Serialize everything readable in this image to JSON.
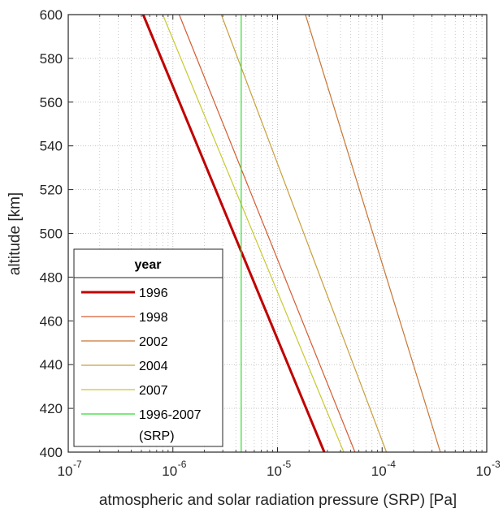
{
  "chart_data": {
    "type": "line",
    "xlabel": "atmospheric and solar radiation pressure (SRP) [Pa]",
    "ylabel": "altitude [km]",
    "xscale": "log",
    "xlim": [
      1e-07,
      0.001
    ],
    "ylim": [
      400,
      600
    ],
    "grid": true,
    "minor_grid": true,
    "y_ticks": [
      "400",
      "420",
      "440",
      "460",
      "480",
      "500",
      "520",
      "540",
      "560",
      "580",
      "600"
    ],
    "x_ticks": [
      {
        "base": "10",
        "exp": "-7"
      },
      {
        "base": "10",
        "exp": "-6"
      },
      {
        "base": "10",
        "exp": "-5"
      },
      {
        "base": "10",
        "exp": "-4"
      },
      {
        "base": "10",
        "exp": "-3"
      }
    ],
    "legend": {
      "title": "year",
      "placement": "bottom-left"
    },
    "series": [
      {
        "name": "1996",
        "color": "#c00000",
        "width": 3,
        "x": [
          5.2e-07,
          2.8e-05
        ],
        "y": [
          600,
          400
        ]
      },
      {
        "name": "1998",
        "color": "#d35c32",
        "width": 1.2,
        "x": [
          1.15e-06,
          5.5e-05
        ],
        "y": [
          600,
          400
        ]
      },
      {
        "name": "2002",
        "color": "#c87533",
        "width": 1.2,
        "x": [
          1.85e-05,
          0.00036
        ],
        "y": [
          600,
          400
        ]
      },
      {
        "name": "2004",
        "color": "#c8a03c",
        "width": 1.2,
        "x": [
          2.9e-06,
          0.00011
        ],
        "y": [
          600,
          400
        ]
      },
      {
        "name": "2007",
        "color": "#c8c832",
        "width": 1.2,
        "x": [
          8e-07,
          4.3e-05
        ],
        "y": [
          600,
          400
        ]
      },
      {
        "name": "1996-2007\n(SRP)",
        "color": "#32dc32",
        "width": 1.2,
        "x": [
          4.5e-06,
          4.5e-06
        ],
        "y": [
          600,
          400
        ]
      }
    ]
  }
}
